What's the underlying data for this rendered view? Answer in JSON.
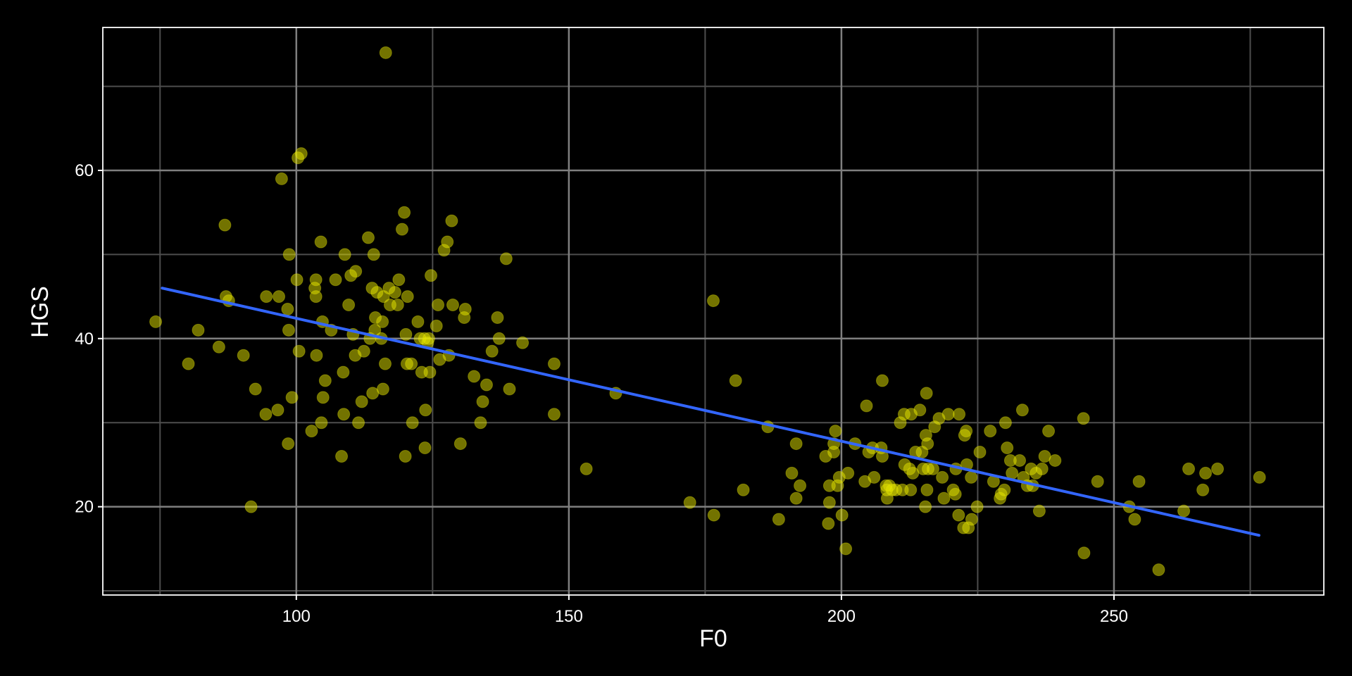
{
  "chart_data": {
    "type": "scatter",
    "title": "",
    "xlabel": "F0",
    "ylabel": "HGS",
    "xlim": [
      64.5,
      288.5
    ],
    "ylim": [
      9.5,
      77
    ],
    "x_ticks": [
      100,
      150,
      200,
      250
    ],
    "y_ticks": [
      20,
      40,
      60
    ],
    "grid": true,
    "legend": "none",
    "colors": {
      "background": "#000000",
      "panel_border": "#ffffff",
      "grid_major": "#7f7f7f",
      "grid_minor": "#4d4d4d",
      "points": "#e6e600",
      "trend_line": "#3366ff"
    },
    "series": [
      {
        "values": [
          [
            74.2,
            42.0
          ],
          [
            80.2,
            37.0
          ],
          [
            82.0,
            41.0
          ],
          [
            85.8,
            39.0
          ],
          [
            86.9,
            53.5
          ],
          [
            87.1,
            45.0
          ],
          [
            87.6,
            44.5
          ],
          [
            90.3,
            38.0
          ],
          [
            91.7,
            20.0
          ],
          [
            92.5,
            34.0
          ],
          [
            94.4,
            31.0
          ],
          [
            94.5,
            45.0
          ],
          [
            96.6,
            31.5
          ],
          [
            96.8,
            45.0
          ],
          [
            97.3,
            59.0
          ],
          [
            98.4,
            43.5
          ],
          [
            98.5,
            27.5
          ],
          [
            98.6,
            41.0
          ],
          [
            98.7,
            50.0
          ],
          [
            99.2,
            33.0
          ],
          [
            100.1,
            47.0
          ],
          [
            100.3,
            61.5
          ],
          [
            100.5,
            38.5
          ],
          [
            100.9,
            62.0
          ],
          [
            102.8,
            29.0
          ],
          [
            103.4,
            46.0
          ],
          [
            103.6,
            47.0
          ],
          [
            103.6,
            45.0
          ],
          [
            103.7,
            38.0
          ],
          [
            104.5,
            51.5
          ],
          [
            104.6,
            30.0
          ],
          [
            104.8,
            42.0
          ],
          [
            104.9,
            33.0
          ],
          [
            105.3,
            35.0
          ],
          [
            106.4,
            41.0
          ],
          [
            107.2,
            47.0
          ],
          [
            108.3,
            26.0
          ],
          [
            108.6,
            36.0
          ],
          [
            108.7,
            31.0
          ],
          [
            108.9,
            50.0
          ],
          [
            109.6,
            44.0
          ],
          [
            110.0,
            47.5
          ],
          [
            110.4,
            40.5
          ],
          [
            110.8,
            38.0
          ],
          [
            110.9,
            48.0
          ],
          [
            111.4,
            30.0
          ],
          [
            112.0,
            32.5
          ],
          [
            112.4,
            38.5
          ],
          [
            113.2,
            52.0
          ],
          [
            113.5,
            40.0
          ],
          [
            113.9,
            46.0
          ],
          [
            114.0,
            33.5
          ],
          [
            114.2,
            50.0
          ],
          [
            114.4,
            41.0
          ],
          [
            114.5,
            42.5
          ],
          [
            114.8,
            45.5
          ],
          [
            115.6,
            40.0
          ],
          [
            115.8,
            42.0
          ],
          [
            115.9,
            34.0
          ],
          [
            116.0,
            45.0
          ],
          [
            116.3,
            37.0
          ],
          [
            116.4,
            74.0
          ],
          [
            117.0,
            46.0
          ],
          [
            117.2,
            44.0
          ],
          [
            118.1,
            45.5
          ],
          [
            118.6,
            44.0
          ],
          [
            118.8,
            47.0
          ],
          [
            119.4,
            53.0
          ],
          [
            119.8,
            55.0
          ],
          [
            120.0,
            26.0
          ],
          [
            120.1,
            40.5
          ],
          [
            120.3,
            37.0
          ],
          [
            120.4,
            45.0
          ],
          [
            121.1,
            37.0
          ],
          [
            121.3,
            30.0
          ],
          [
            122.3,
            42.0
          ],
          [
            122.7,
            40.0
          ],
          [
            123.0,
            36.0
          ],
          [
            123.5,
            40.0
          ],
          [
            123.6,
            27.0
          ],
          [
            123.7,
            31.5
          ],
          [
            124.1,
            39.5
          ],
          [
            124.3,
            40.0
          ],
          [
            124.5,
            36.0
          ],
          [
            124.7,
            47.5
          ],
          [
            125.7,
            41.5
          ],
          [
            126.0,
            44.0
          ],
          [
            126.3,
            37.5
          ],
          [
            127.1,
            50.5
          ],
          [
            127.7,
            51.5
          ],
          [
            128.0,
            38.0
          ],
          [
            128.5,
            54.0
          ],
          [
            128.7,
            44.0
          ],
          [
            130.1,
            27.5
          ],
          [
            130.8,
            42.5
          ],
          [
            131.0,
            43.5
          ],
          [
            132.6,
            35.5
          ],
          [
            133.8,
            30.0
          ],
          [
            134.2,
            32.5
          ],
          [
            134.9,
            34.5
          ],
          [
            135.9,
            38.5
          ],
          [
            136.9,
            42.5
          ],
          [
            137.2,
            40.0
          ],
          [
            138.5,
            49.5
          ],
          [
            139.1,
            34.0
          ],
          [
            141.5,
            39.5
          ],
          [
            147.3,
            37.0
          ],
          [
            147.3,
            31.0
          ],
          [
            153.2,
            24.5
          ],
          [
            158.6,
            33.5
          ],
          [
            172.2,
            20.5
          ],
          [
            176.5,
            44.5
          ],
          [
            176.6,
            19.0
          ],
          [
            180.6,
            35.0
          ],
          [
            182.0,
            22.0
          ],
          [
            186.5,
            29.5
          ],
          [
            188.5,
            18.5
          ],
          [
            190.9,
            24.0
          ],
          [
            191.7,
            27.5
          ],
          [
            191.7,
            21.0
          ],
          [
            192.4,
            22.5
          ],
          [
            197.1,
            26.0
          ],
          [
            197.6,
            18.0
          ],
          [
            197.8,
            20.5
          ],
          [
            197.8,
            22.5
          ],
          [
            198.6,
            27.5
          ],
          [
            198.6,
            26.5
          ],
          [
            198.9,
            29.0
          ],
          [
            199.3,
            22.5
          ],
          [
            199.6,
            23.5
          ],
          [
            200.1,
            19.0
          ],
          [
            200.8,
            15.0
          ],
          [
            201.2,
            24.0
          ],
          [
            202.5,
            27.5
          ],
          [
            204.3,
            23.0
          ],
          [
            204.6,
            32.0
          ],
          [
            205.0,
            26.5
          ],
          [
            205.7,
            27.0
          ],
          [
            206.0,
            23.5
          ],
          [
            207.3,
            27.0
          ],
          [
            207.5,
            26.0
          ],
          [
            207.5,
            35.0
          ],
          [
            208.2,
            22.5
          ],
          [
            208.3,
            22.0
          ],
          [
            208.4,
            21.0
          ],
          [
            208.8,
            22.5
          ],
          [
            209.3,
            22.0
          ],
          [
            210.0,
            22.0
          ],
          [
            210.8,
            30.0
          ],
          [
            211.2,
            22.0
          ],
          [
            211.5,
            31.0
          ],
          [
            211.6,
            25.0
          ],
          [
            212.5,
            24.5
          ],
          [
            212.7,
            22.0
          ],
          [
            212.8,
            31.0
          ],
          [
            213.1,
            24.0
          ],
          [
            213.6,
            26.5
          ],
          [
            214.4,
            31.5
          ],
          [
            214.8,
            26.5
          ],
          [
            215.0,
            24.5
          ],
          [
            215.4,
            20.0
          ],
          [
            215.5,
            28.5
          ],
          [
            215.6,
            33.5
          ],
          [
            215.7,
            22.0
          ],
          [
            215.8,
            27.5
          ],
          [
            215.9,
            24.5
          ],
          [
            216.8,
            24.5
          ],
          [
            217.1,
            29.5
          ],
          [
            217.9,
            30.5
          ],
          [
            218.5,
            23.5
          ],
          [
            218.8,
            21.0
          ],
          [
            219.6,
            31.0
          ],
          [
            220.5,
            22.0
          ],
          [
            220.9,
            21.5
          ],
          [
            221.0,
            24.5
          ],
          [
            221.5,
            19.0
          ],
          [
            221.6,
            31.0
          ],
          [
            222.4,
            17.5
          ],
          [
            222.6,
            28.5
          ],
          [
            222.9,
            29.0
          ],
          [
            223.0,
            25.0
          ],
          [
            223.3,
            17.5
          ],
          [
            223.8,
            23.5
          ],
          [
            223.9,
            18.5
          ],
          [
            224.9,
            20.0
          ],
          [
            225.4,
            26.5
          ],
          [
            227.3,
            29.0
          ],
          [
            227.9,
            23.0
          ],
          [
            229.1,
            21.0
          ],
          [
            229.3,
            21.5
          ],
          [
            229.9,
            22.0
          ],
          [
            230.1,
            30.0
          ],
          [
            230.4,
            27.0
          ],
          [
            231.0,
            25.5
          ],
          [
            231.3,
            24.0
          ],
          [
            232.7,
            25.5
          ],
          [
            233.2,
            31.5
          ],
          [
            233.4,
            23.5
          ],
          [
            234.1,
            22.5
          ],
          [
            234.8,
            24.5
          ],
          [
            235.1,
            22.5
          ],
          [
            235.7,
            24.0
          ],
          [
            236.3,
            19.5
          ],
          [
            236.8,
            24.5
          ],
          [
            237.3,
            26.0
          ],
          [
            238.0,
            29.0
          ],
          [
            239.2,
            25.5
          ],
          [
            244.4,
            30.5
          ],
          [
            244.5,
            14.5
          ],
          [
            247.0,
            23.0
          ],
          [
            252.8,
            20.0
          ],
          [
            253.8,
            18.5
          ],
          [
            254.6,
            23.0
          ],
          [
            258.2,
            12.5
          ],
          [
            262.8,
            19.5
          ],
          [
            263.7,
            24.5
          ],
          [
            266.3,
            22.0
          ],
          [
            266.8,
            24.0
          ],
          [
            269.0,
            24.5
          ],
          [
            276.7,
            23.5
          ]
        ]
      }
    ],
    "trend_line": {
      "x": [
        75.4,
        276.6
      ],
      "y": [
        46.0,
        16.6
      ]
    }
  }
}
